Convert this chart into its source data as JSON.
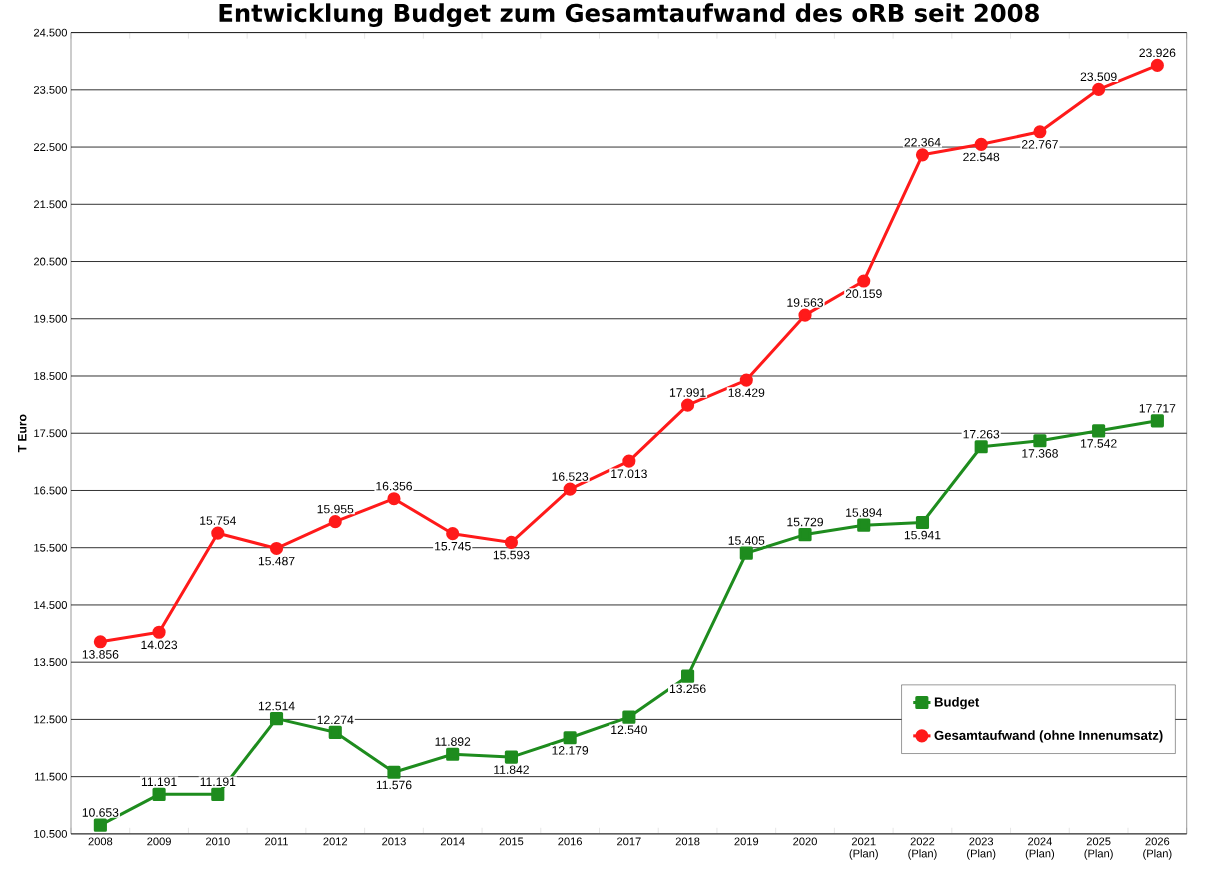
{
  "chart_data": {
    "type": "line",
    "title": "Entwicklung Budget zum Gesamtaufwand des oRB seit 2008",
    "ylabel": "T Euro",
    "categories": [
      "2008",
      "2009",
      "2010",
      "2011",
      "2012",
      "2013",
      "2014",
      "2015",
      "2016",
      "2017",
      "2018",
      "2019",
      "2020",
      "2021 (Plan)",
      "2022 (Plan)",
      "2023 (Plan)",
      "2024 (Plan)",
      "2025 (Plan)",
      "2026 (Plan)"
    ],
    "series": [
      {
        "name": "Budget",
        "color": "#1e8c1e",
        "marker": "square",
        "values": [
          10653,
          11191,
          11191,
          12514,
          12274,
          11576,
          11892,
          11842,
          12179,
          12540,
          13256,
          15405,
          15729,
          15894,
          15941,
          17263,
          17368,
          17542,
          17717
        ],
        "value_labels": [
          "10.653",
          "11.191",
          "11.191",
          "12.514",
          "12.274",
          "11.576",
          "11.892",
          "11.842",
          "12.179",
          "12.540",
          "13.256",
          "15.405",
          "15.729",
          "15.894",
          "15.941",
          "17.263",
          "17.368",
          "17.542",
          "17.717"
        ]
      },
      {
        "name": "Gesamtaufwand (ohne Innenumsatz)",
        "color": "#ff1a1a",
        "marker": "circle",
        "values": [
          13856,
          14023,
          15754,
          15487,
          15955,
          16356,
          15745,
          15593,
          16523,
          17013,
          17991,
          18429,
          19563,
          20159,
          22364,
          22548,
          22767,
          23509,
          23926
        ],
        "value_labels": [
          "13.856",
          "14.023",
          "15.754",
          "15.487",
          "15.955",
          "16.356",
          "15.745",
          "15.593",
          "16.523",
          "17.013",
          "17.991",
          "18.429",
          "19.563",
          "20.159",
          "22.364",
          "22.548",
          "22.767",
          "23.509",
          "23.926"
        ]
      }
    ],
    "ylim": [
      10500,
      24500
    ],
    "yticks": [
      {
        "value": 10500,
        "label": "10.500"
      },
      {
        "value": 11500,
        "label": "11.500"
      },
      {
        "value": 12500,
        "label": "12.500"
      },
      {
        "value": 13500,
        "label": "13.500"
      },
      {
        "value": 14500,
        "label": "14.500"
      },
      {
        "value": 15500,
        "label": "15.500"
      },
      {
        "value": 16500,
        "label": "16.500"
      },
      {
        "value": 17500,
        "label": "17.500"
      },
      {
        "value": 18500,
        "label": "18.500"
      },
      {
        "value": 19500,
        "label": "19.500"
      },
      {
        "value": 20500,
        "label": "20.500"
      },
      {
        "value": 21500,
        "label": "21.500"
      },
      {
        "value": 22500,
        "label": "22.500"
      },
      {
        "value": 23500,
        "label": "23.500"
      },
      {
        "value": 24500,
        "label": "24.500"
      }
    ],
    "grid": "y",
    "legend": "bottom right",
    "line_style": "solid"
  }
}
